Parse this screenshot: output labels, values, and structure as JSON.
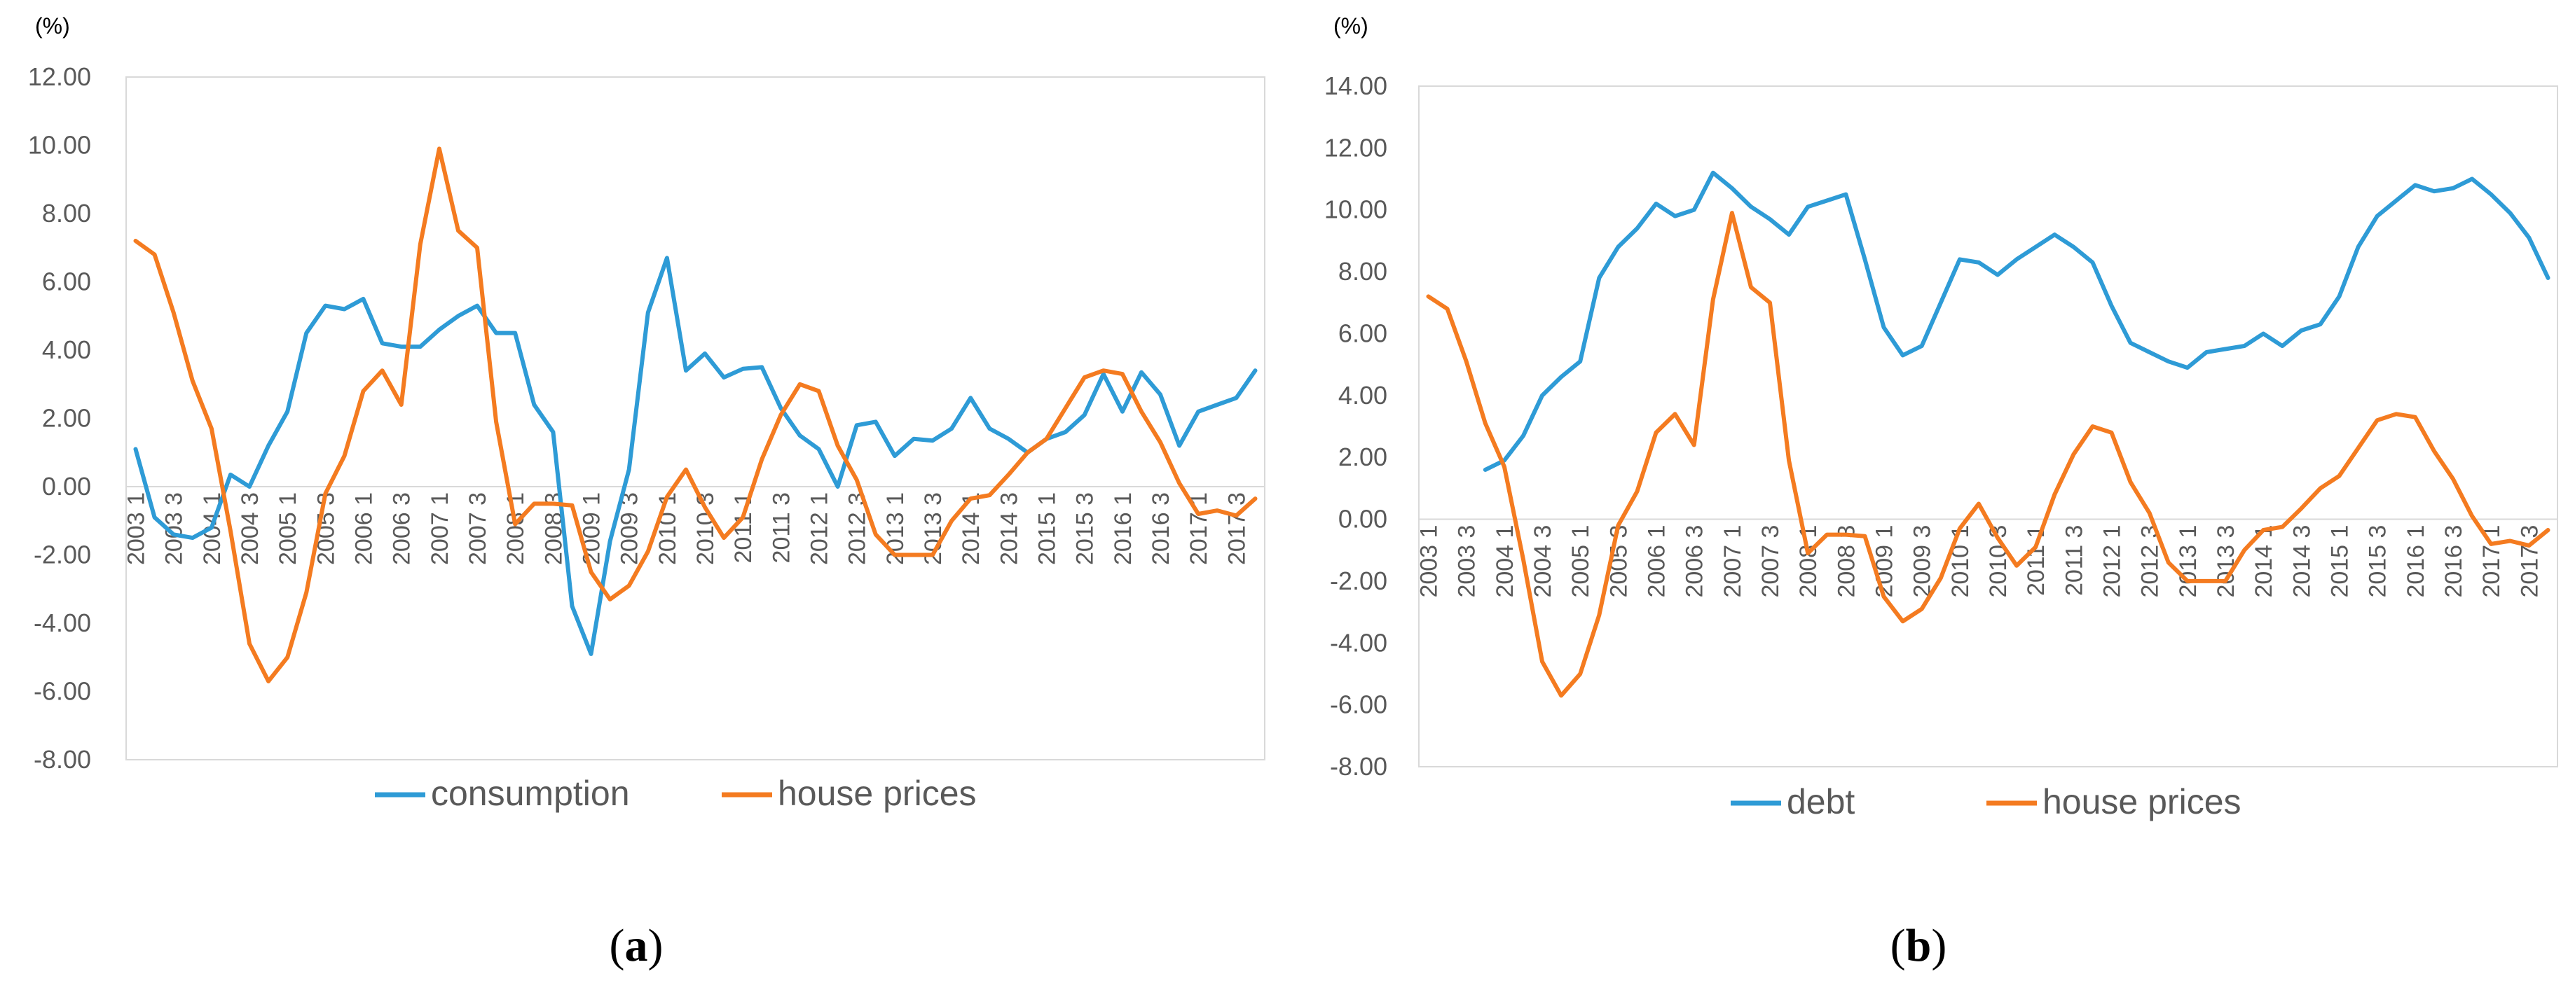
{
  "chart_data": [
    {
      "type": "line",
      "panel_label": "a",
      "unit": "(%)",
      "ylim": [
        -8,
        12
      ],
      "yticks": [
        "-8.00",
        "-6.00",
        "-4.00",
        "-2.00",
        "0.00",
        "2.00",
        "4.00",
        "6.00",
        "8.00",
        "10.00",
        "12.00"
      ],
      "x_tick_labels": [
        "2003 1",
        "2003 3",
        "2004 1",
        "2004 3",
        "2005 1",
        "2005 3",
        "2006 1",
        "2006 3",
        "2007 1",
        "2007 3",
        "2008 1",
        "2008 3",
        "2009 1",
        "2009 3",
        "2010 1",
        "2010 3",
        "2011 1",
        "2011 3",
        "2012 1",
        "2012 3",
        "2013 1",
        "2013 3",
        "2014 1",
        "2014 3",
        "2015 1",
        "2015 3",
        "2016 1",
        "2016 3",
        "2017 1",
        "2017 3"
      ],
      "n_points": 60,
      "legend_position": "bottom",
      "series": [
        {
          "name": "consumption",
          "color": "#2E9BD6",
          "start_index": 0,
          "values": [
            1.1,
            -0.9,
            -1.4,
            -1.5,
            -1.2,
            0.35,
            0.0,
            1.2,
            2.2,
            4.5,
            5.3,
            5.2,
            5.5,
            4.2,
            4.1,
            4.1,
            4.6,
            5.0,
            5.3,
            4.5,
            4.5,
            2.4,
            1.6,
            -3.5,
            -4.9,
            -1.6,
            0.5,
            5.1,
            6.7,
            3.4,
            3.9,
            3.2,
            3.45,
            3.5,
            2.3,
            1.5,
            1.1,
            0.0,
            1.8,
            1.9,
            0.9,
            1.4,
            1.35,
            1.7,
            2.6,
            1.7,
            1.4,
            1.0,
            1.4,
            1.6,
            2.1,
            3.3,
            2.2,
            3.35,
            2.7,
            1.2,
            2.2,
            2.4,
            2.6,
            3.4
          ]
        },
        {
          "name": "house prices",
          "color": "#F47B20",
          "start_index": 0,
          "values": [
            7.2,
            6.8,
            5.1,
            3.1,
            1.7,
            -1.3,
            -4.6,
            -5.7,
            -5.0,
            -3.1,
            -0.2,
            0.9,
            2.8,
            3.4,
            2.4,
            7.1,
            9.9,
            7.5,
            7.0,
            1.9,
            -1.1,
            -0.5,
            -0.5,
            -0.55,
            -2.5,
            -3.3,
            -2.9,
            -1.9,
            -0.3,
            0.5,
            -0.6,
            -1.5,
            -0.9,
            0.8,
            2.1,
            3.0,
            2.8,
            1.2,
            0.2,
            -1.4,
            -2.0,
            -2.0,
            -2.0,
            -1.0,
            -0.35,
            -0.25,
            0.35,
            1.0,
            1.4,
            2.3,
            3.2,
            3.4,
            3.3,
            2.2,
            1.3,
            0.1,
            -0.8,
            -0.7,
            -0.85,
            -0.35
          ]
        }
      ]
    },
    {
      "type": "line",
      "panel_label": "b",
      "unit": "(%)",
      "ylim": [
        -8,
        14
      ],
      "yticks": [
        "-8.00",
        "-6.00",
        "-4.00",
        "-2.00",
        "0.00",
        "2.00",
        "4.00",
        "6.00",
        "8.00",
        "10.00",
        "12.00",
        "14.00"
      ],
      "x_tick_labels": [
        "2003 1",
        "2003 3",
        "2004 1",
        "2004 3",
        "2005 1",
        "2005 3",
        "2006 1",
        "2006 3",
        "2007 1",
        "2007 3",
        "2008 1",
        "2008 3",
        "2009 1",
        "2009 3",
        "2010 1",
        "2010 3",
        "2011 1",
        "2011 3",
        "2012 1",
        "2012 3",
        "2013 1",
        "2013 3",
        "2014 1",
        "2014 3",
        "2015 1",
        "2015 3",
        "2016 1",
        "2016 3",
        "2017 1",
        "2017 3"
      ],
      "n_points": 60,
      "legend_position": "bottom",
      "series": [
        {
          "name": "debt",
          "color": "#2E9BD6",
          "start_index": 3,
          "values": [
            1.6,
            1.9,
            2.7,
            4.0,
            4.6,
            5.1,
            7.8,
            8.8,
            9.4,
            10.2,
            9.8,
            10.0,
            11.2,
            10.7,
            10.1,
            9.7,
            9.2,
            10.1,
            10.3,
            10.5,
            8.4,
            6.2,
            5.3,
            5.6,
            7.0,
            8.4,
            8.3,
            7.9,
            8.4,
            8.8,
            9.2,
            8.8,
            8.3,
            6.9,
            5.7,
            5.4,
            5.1,
            4.9,
            5.4,
            5.5,
            5.6,
            6.0,
            5.6,
            6.1,
            6.3,
            7.2,
            8.8,
            9.8,
            10.3,
            10.8,
            10.6,
            10.7,
            11.0,
            10.5,
            9.9,
            9.1,
            7.8
          ]
        },
        {
          "name": "house prices",
          "color": "#F47B20",
          "start_index": 0,
          "values": [
            7.2,
            6.8,
            5.1,
            3.1,
            1.7,
            -1.3,
            -4.6,
            -5.7,
            -5.0,
            -3.1,
            -0.2,
            0.9,
            2.8,
            3.4,
            2.4,
            7.1,
            9.9,
            7.5,
            7.0,
            1.9,
            -1.1,
            -0.5,
            -0.5,
            -0.55,
            -2.5,
            -3.3,
            -2.9,
            -1.9,
            -0.3,
            0.5,
            -0.6,
            -1.5,
            -0.9,
            0.8,
            2.1,
            3.0,
            2.8,
            1.2,
            0.2,
            -1.4,
            -2.0,
            -2.0,
            -2.0,
            -1.0,
            -0.35,
            -0.25,
            0.35,
            1.0,
            1.4,
            2.3,
            3.2,
            3.4,
            3.3,
            2.2,
            1.3,
            0.1,
            -0.8,
            -0.7,
            -0.85,
            -0.35
          ]
        }
      ]
    }
  ]
}
